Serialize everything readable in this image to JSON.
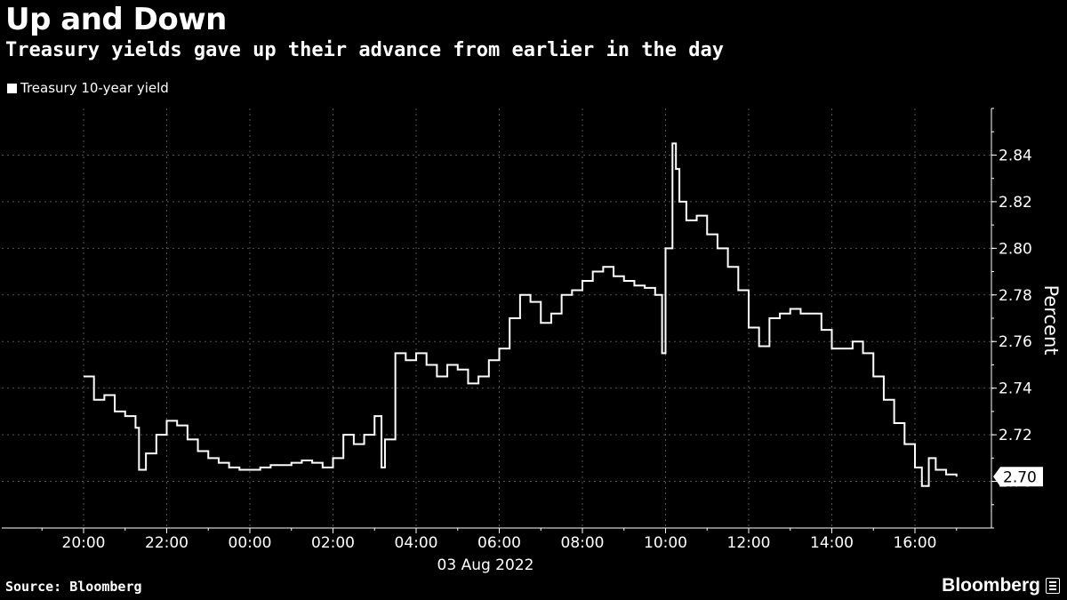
{
  "header": {
    "title": "Up and Down",
    "subtitle": "Treasury yields gave up their advance from earlier in the day"
  },
  "footer": {
    "source": "Source: Bloomberg",
    "brand": "Bloomberg"
  },
  "colors": {
    "background": "#000000",
    "line": "#ffffff",
    "grid": "#555555"
  },
  "chart_data": {
    "type": "line",
    "title": "Up and Down",
    "subtitle": "Treasury yields gave up their advance from earlier in the day",
    "xlabel": "03 Aug 2022",
    "ylabel": "Percent",
    "x_tick_labels": [
      "20:00",
      "22:00",
      "00:00",
      "02:00",
      "04:00",
      "06:00",
      "08:00",
      "10:00",
      "12:00",
      "14:00",
      "16:00"
    ],
    "y_tick_labels": [
      "2.70",
      "2.72",
      "2.74",
      "2.76",
      "2.78",
      "2.80",
      "2.82",
      "2.84"
    ],
    "ylim": [
      2.68,
      2.86
    ],
    "grid": true,
    "legend_position": "top-left",
    "last_value_label": "2.70",
    "series": [
      {
        "name": "Treasury 10-year yield",
        "x": [
          "20:00",
          "20:15",
          "20:30",
          "20:45",
          "21:00",
          "21:15",
          "21:20",
          "21:30",
          "21:45",
          "22:00",
          "22:15",
          "22:30",
          "22:45",
          "23:00",
          "23:15",
          "23:30",
          "23:45",
          "00:00",
          "00:15",
          "00:30",
          "00:45",
          "01:00",
          "01:15",
          "01:30",
          "01:45",
          "02:00",
          "02:15",
          "02:30",
          "02:45",
          "03:00",
          "03:10",
          "03:15",
          "03:30",
          "03:45",
          "04:00",
          "04:15",
          "04:30",
          "04:45",
          "05:00",
          "05:15",
          "05:30",
          "05:45",
          "06:00",
          "06:15",
          "06:30",
          "06:45",
          "07:00",
          "07:15",
          "07:30",
          "07:45",
          "08:00",
          "08:15",
          "08:30",
          "08:45",
          "09:00",
          "09:15",
          "09:30",
          "09:45",
          "09:55",
          "10:00",
          "10:10",
          "10:15",
          "10:20",
          "10:30",
          "10:45",
          "11:00",
          "11:15",
          "11:30",
          "11:45",
          "12:00",
          "12:15",
          "12:30",
          "12:45",
          "13:00",
          "13:15",
          "13:30",
          "13:45",
          "14:00",
          "14:15",
          "14:30",
          "14:45",
          "15:00",
          "15:15",
          "15:30",
          "15:45",
          "16:00",
          "16:10",
          "16:20",
          "16:30",
          "16:45",
          "17:00"
        ],
        "y": [
          2.745,
          2.735,
          2.737,
          2.73,
          2.728,
          2.723,
          2.705,
          2.712,
          2.72,
          2.726,
          2.724,
          2.718,
          2.713,
          2.71,
          2.708,
          2.706,
          2.705,
          2.705,
          2.706,
          2.707,
          2.707,
          2.708,
          2.709,
          2.708,
          2.706,
          2.71,
          2.72,
          2.716,
          2.72,
          2.728,
          2.706,
          2.718,
          2.755,
          2.752,
          2.755,
          2.75,
          2.745,
          2.75,
          2.748,
          2.742,
          2.745,
          2.752,
          2.757,
          2.77,
          2.78,
          2.777,
          2.768,
          2.772,
          2.78,
          2.782,
          2.786,
          2.79,
          2.792,
          2.788,
          2.786,
          2.784,
          2.783,
          2.78,
          2.755,
          2.8,
          2.845,
          2.834,
          2.82,
          2.812,
          2.814,
          2.806,
          2.8,
          2.792,
          2.782,
          2.766,
          2.758,
          2.77,
          2.772,
          2.774,
          2.772,
          2.772,
          2.765,
          2.757,
          2.757,
          2.76,
          2.755,
          2.745,
          2.735,
          2.725,
          2.716,
          2.706,
          2.698,
          2.71,
          2.705,
          2.703,
          2.702
        ]
      }
    ]
  }
}
